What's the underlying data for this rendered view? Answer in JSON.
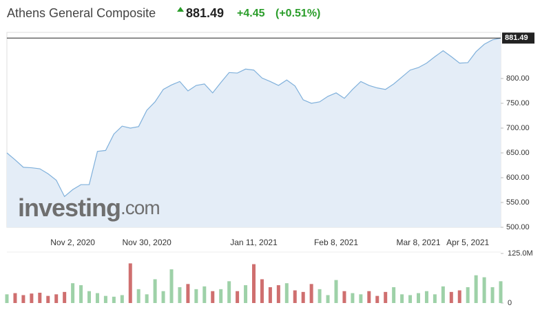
{
  "chart_data": {
    "type": "line",
    "title": "Athens General Composite",
    "last": 881.49,
    "change": {
      "value": 4.45,
      "label": "+4.45"
    },
    "change_pct": {
      "value": 0.51,
      "label": "(+0.51%)"
    },
    "watermark": [
      "investing",
      ".com"
    ],
    "categories": [
      null,
      null,
      null,
      null,
      null,
      null,
      null,
      null,
      "Nov 2, 2020",
      null,
      null,
      null,
      null,
      null,
      null,
      null,
      null,
      "Nov 30, 2020",
      null,
      null,
      null,
      null,
      null,
      null,
      null,
      null,
      null,
      null,
      null,
      null,
      "Jan 11, 2021",
      null,
      null,
      null,
      null,
      null,
      null,
      null,
      null,
      null,
      "Feb 8, 2021",
      null,
      null,
      null,
      null,
      null,
      null,
      null,
      null,
      null,
      "Mar 8, 2021",
      null,
      null,
      null,
      null,
      null,
      "Apr 5, 2021",
      null,
      null,
      null,
      null
    ],
    "values": [
      650,
      636,
      621,
      620,
      618,
      608,
      595,
      562,
      576,
      586,
      586,
      653,
      655,
      688,
      704,
      700,
      703,
      736,
      753,
      778,
      787,
      794,
      775,
      786,
      789,
      771,
      792,
      812,
      811,
      819,
      817,
      801,
      794,
      786,
      797,
      785,
      757,
      750,
      753,
      764,
      771,
      760,
      778,
      794,
      786,
      781,
      778,
      789,
      803,
      817,
      822,
      831,
      844,
      856,
      844,
      831,
      832,
      854,
      869,
      878,
      881.49
    ],
    "color": "#7fb0db",
    "area_color": "#e4edf7",
    "ylim": [
      500,
      893
    ],
    "yticks": [
      {
        "value": 500,
        "label": "500.00"
      },
      {
        "value": 550,
        "label": "550.00"
      },
      {
        "value": 600,
        "label": "600.00"
      },
      {
        "value": 650,
        "label": "650.00"
      },
      {
        "value": 700,
        "label": "700.00"
      },
      {
        "value": 750,
        "label": "750.00"
      },
      {
        "value": 800,
        "label": "800.00"
      }
    ],
    "volume": {
      "values": [
        22000000,
        25000000,
        20000000,
        24000000,
        26000000,
        18000000,
        22000000,
        28000000,
        50000000,
        45000000,
        30000000,
        25000000,
        18000000,
        16000000,
        20000000,
        100000000,
        35000000,
        22000000,
        60000000,
        30000000,
        85000000,
        40000000,
        48000000,
        35000000,
        42000000,
        30000000,
        35000000,
        55000000,
        30000000,
        45000000,
        98000000,
        60000000,
        40000000,
        45000000,
        50000000,
        32000000,
        28000000,
        48000000,
        35000000,
        20000000,
        58000000,
        30000000,
        25000000,
        22000000,
        30000000,
        18000000,
        28000000,
        40000000,
        22000000,
        20000000,
        25000000,
        30000000,
        22000000,
        42000000,
        28000000,
        32000000,
        40000000,
        70000000,
        65000000,
        40000000,
        55000000
      ],
      "up_color": "#9ed1a8",
      "down_color": "#cf6f6f",
      "ylim": [
        0,
        125000000
      ],
      "yticks": [
        0,
        {
          "value": 125000000,
          "label": "125.0M"
        }
      ]
    }
  }
}
